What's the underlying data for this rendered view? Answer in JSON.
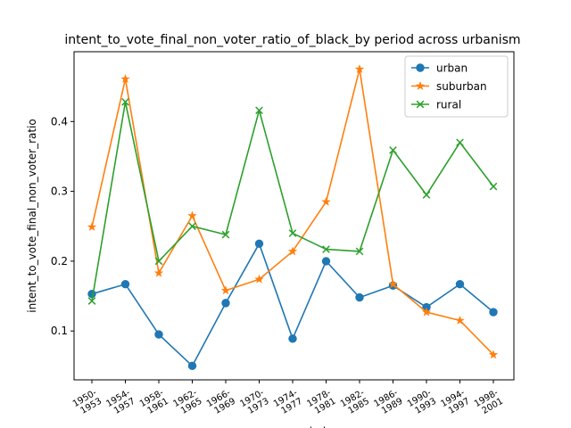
{
  "chart_data": {
    "type": "line",
    "title": "intent_to_vote_final_non_voter_ratio_of_black_by period across urbanism",
    "xlabel": "period",
    "ylabel": "intent_to_vote_final_non_voter_ratio",
    "categories": [
      "1950-\n1953",
      "1954-\n1957",
      "1958-\n1961",
      "1962-\n1965",
      "1966-\n1969",
      "1970-\n1973",
      "1974-\n1977",
      "1978-\n1981",
      "1982-\n1985",
      "1986-\n1989",
      "1990-\n1993",
      "1994-\n1997",
      "1998-\n2001"
    ],
    "ylim": [
      0.03,
      0.5
    ],
    "yticks": [
      "0.1",
      "0.2",
      "0.3",
      "0.4"
    ],
    "ytick_values": [
      0.1,
      0.2,
      0.3,
      0.4
    ],
    "grid": false,
    "legend_position": "top-right",
    "series": [
      {
        "name": "urban",
        "color": "#1f77b4",
        "marker": "circle",
        "values": [
          0.153,
          0.167,
          0.095,
          0.05,
          0.14,
          0.225,
          0.089,
          0.2,
          0.148,
          0.165,
          0.134,
          0.167,
          0.127
        ]
      },
      {
        "name": "suburban",
        "color": "#ff7f0e",
        "marker": "star",
        "values": [
          0.249,
          0.461,
          0.183,
          0.265,
          0.158,
          0.174,
          0.214,
          0.285,
          0.475,
          0.167,
          0.127,
          0.115,
          0.066
        ]
      },
      {
        "name": "rural",
        "color": "#2ca02c",
        "marker": "x",
        "values": [
          0.143,
          0.428,
          0.2,
          0.25,
          0.238,
          0.416,
          0.24,
          0.217,
          0.214,
          0.359,
          0.295,
          0.37,
          0.307
        ]
      }
    ]
  }
}
